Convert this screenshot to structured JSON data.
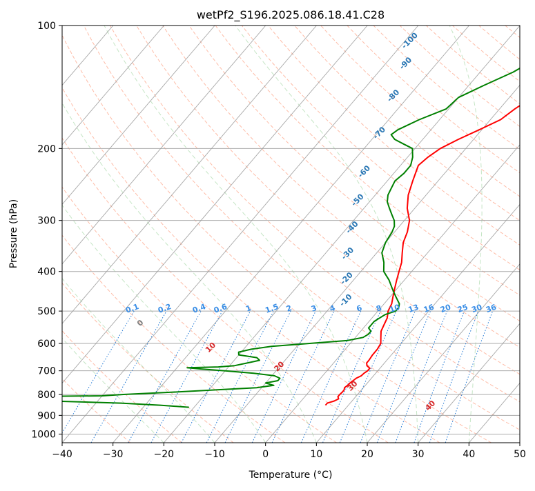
{
  "chart_data": {
    "type": "line",
    "title": "wetPf2_S196.2025.086.18.41.C28",
    "xlabel": "Temperature (°C)",
    "ylabel": "Pressure (hPa)",
    "xlim": [
      -40,
      50
    ],
    "ylim": [
      1050,
      100
    ],
    "y_scale": "log",
    "grid": true,
    "x_ticks": [
      "−40",
      "−30",
      "−20",
      "−10",
      "0",
      "10",
      "20",
      "30",
      "40",
      "50"
    ],
    "x_tick_values": [
      -40,
      -30,
      -20,
      -10,
      0,
      10,
      20,
      30,
      40,
      50
    ],
    "y_ticks": [
      "100",
      "200",
      "300",
      "400",
      "500",
      "600",
      "700",
      "800",
      "900",
      "1000"
    ],
    "y_tick_values": [
      100,
      200,
      300,
      400,
      500,
      600,
      700,
      800,
      900,
      1000
    ],
    "colors": {
      "temperature": "#ff0000",
      "dewpoint": "#008000",
      "isotherm": "#999999",
      "isobar": "#aaaaaa",
      "dry_adiabat": "#fda58a",
      "moist_adiabat": "#9fd39f",
      "mixing_ratio": "#1f77d4",
      "dry_adiabat_label": "#d62728",
      "moist_adiabat_label": "#2a77b4",
      "zero_label": "#7f7f7f"
    },
    "series": [
      {
        "key": "temperature",
        "pressure": [
          850,
          840,
          830,
          820,
          810,
          800,
          790,
          780,
          770,
          760,
          750,
          740,
          730,
          720,
          710,
          700,
          690,
          680,
          670,
          660,
          640,
          620,
          600,
          580,
          560,
          540,
          520,
          500,
          480,
          460,
          440,
          420,
          400,
          380,
          360,
          340,
          320,
          300,
          280,
          260,
          240,
          220,
          210,
          200,
          190,
          180,
          170,
          160,
          150,
          140,
          130,
          120,
          110,
          100
        ],
        "temperature": [
          5.5,
          5.5,
          6.5,
          7.0,
          6.5,
          6.5,
          6.6,
          6.6,
          6.3,
          6.5,
          6.6,
          6.8,
          7.0,
          7.6,
          7.7,
          8.0,
          8.0,
          7.0,
          6.5,
          6.5,
          6.3,
          6.3,
          6.0,
          5.0,
          4.0,
          3.5,
          3.0,
          2.0,
          1.5,
          0.5,
          -0.5,
          -1.5,
          -2.5,
          -3.5,
          -5.0,
          -6.5,
          -7.5,
          -9.0,
          -11.5,
          -13.5,
          -15.0,
          -16.5,
          -16.0,
          -15.0,
          -13.0,
          -10.5,
          -8.0,
          -7.0,
          -5.5,
          -5.0,
          -5.0,
          -6.0,
          -6.5,
          -7.0
        ]
      },
      {
        "key": "dewpoint",
        "pressure": [
          860,
          850,
          840,
          830,
          826,
          822,
          818,
          814,
          810,
          806,
          800,
          790,
          780,
          770,
          760,
          750,
          740,
          730,
          720,
          710,
          700,
          693,
          688,
          685,
          680,
          670,
          660,
          650,
          645,
          640,
          630,
          620,
          610,
          600,
          590,
          580,
          570,
          560,
          550,
          530,
          510,
          500,
          490,
          480,
          460,
          440,
          420,
          400,
          380,
          360,
          340,
          320,
          310,
          300,
          290,
          280,
          270,
          260,
          250,
          240,
          230,
          220,
          210,
          200,
          195,
          190,
          185,
          180,
          170,
          160,
          150,
          140,
          130,
          120,
          110,
          100
        ],
        "temperature": [
          -21.0,
          -27.0,
          -35.0,
          -49.0,
          -60.0,
          -73.0,
          -80.0,
          -72.0,
          -58.0,
          -40.0,
          -36.0,
          -27.0,
          -19.0,
          -11.0,
          -8.0,
          -10.0,
          -8.0,
          -8.0,
          -9.5,
          -14.0,
          -20.0,
          -25.0,
          -28.0,
          -22.0,
          -19.0,
          -17.0,
          -15.0,
          -16.0,
          -18.0,
          -20.0,
          -20.5,
          -18.5,
          -15.0,
          -8.0,
          -1.0,
          1.5,
          2.0,
          2.0,
          1.0,
          1.0,
          2.0,
          3.5,
          3.5,
          3.0,
          1.0,
          -1.0,
          -3.0,
          -5.5,
          -7.0,
          -9.0,
          -10.0,
          -10.5,
          -11.0,
          -12.0,
          -13.5,
          -15.0,
          -16.5,
          -17.5,
          -18.0,
          -18.5,
          -18.0,
          -18.0,
          -19.0,
          -20.5,
          -23.0,
          -25.5,
          -27.0,
          -26.5,
          -24.0,
          -20.5,
          -20.0,
          -17.0,
          -13.5,
          -11.0,
          -8.0,
          -4.0
        ]
      }
    ],
    "dry_adiabat_labels": [
      {
        "text": "0",
        "kind": "zero",
        "theta_c": 0,
        "p": 540
      },
      {
        "text": "10",
        "kind": "dry",
        "theta_c": 10,
        "p": 620
      },
      {
        "text": "20",
        "kind": "dry",
        "theta_c": 20,
        "p": 690
      },
      {
        "text": "30",
        "kind": "dry",
        "theta_c": 30,
        "p": 770
      },
      {
        "text": "40",
        "kind": "dry",
        "theta_c": 40,
        "p": 860
      }
    ],
    "moist_adiabat_labels": [
      {
        "text": "-100",
        "t": -38.5,
        "p": 110
      },
      {
        "text": "-90",
        "t": -35.5,
        "p": 125
      },
      {
        "text": "-80",
        "t": -32.5,
        "p": 150
      },
      {
        "text": "-70",
        "t": -29.0,
        "p": 185
      },
      {
        "text": "-60",
        "t": -25.5,
        "p": 230
      },
      {
        "text": "-50",
        "t": -22.0,
        "p": 270
      },
      {
        "text": "-40",
        "t": -18.5,
        "p": 315
      },
      {
        "text": "-30",
        "t": -15.0,
        "p": 365
      },
      {
        "text": "-20",
        "t": -11.0,
        "p": 420
      },
      {
        "text": "-10",
        "t": -7.5,
        "p": 475
      }
    ],
    "mixing_ratio_labels": [
      "0.1",
      "0.2",
      "0.4",
      "0.6",
      "1",
      "1.5",
      "2",
      "3",
      "4",
      "6",
      "8",
      "10",
      "13",
      "16",
      "20",
      "25",
      "30",
      "36"
    ],
    "mixing_ratio_values": [
      0.1,
      0.2,
      0.4,
      0.6,
      1,
      1.5,
      2,
      3,
      4,
      6,
      8,
      10,
      13,
      16,
      20,
      25,
      30,
      36
    ]
  }
}
